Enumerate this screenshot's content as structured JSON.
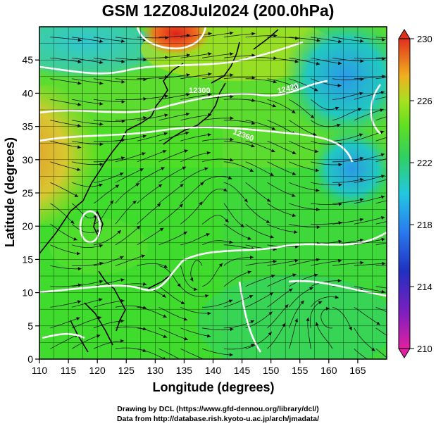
{
  "title": "GSM 12Z08Jul2024 (200.0hPa)",
  "axes": {
    "x_label": "Longitude (degrees)",
    "y_label": "Latitude  (degrees)",
    "x_ticks": [
      "110",
      "115",
      "120",
      "125",
      "130",
      "135",
      "140",
      "145",
      "150",
      "155",
      "160",
      "165"
    ],
    "y_ticks": [
      "0",
      "5",
      "10",
      "15",
      "20",
      "25",
      "30",
      "35",
      "40",
      "45"
    ],
    "x_range": [
      110,
      170
    ],
    "y_range": [
      0,
      50
    ]
  },
  "colorbar": {
    "labels": [
      "230",
      "226",
      "222",
      "218",
      "214",
      "210"
    ],
    "range": [
      210,
      230
    ],
    "colors": [
      "#e0209a",
      "#3a1fb0",
      "#2a6cf0",
      "#23c4e8",
      "#33d04c",
      "#5fe020",
      "#a8e020",
      "#f0a020",
      "#e02a1e"
    ]
  },
  "contour_labels": [
    "12300",
    "12420",
    "12360"
  ],
  "credits": {
    "line1": "Drawing by DCL (https://www.gfd-dennou.org/library/dcl/)",
    "line2": "Data from http://database.rish.kyoto-u.ac.jp/arch/jmadata/"
  }
}
